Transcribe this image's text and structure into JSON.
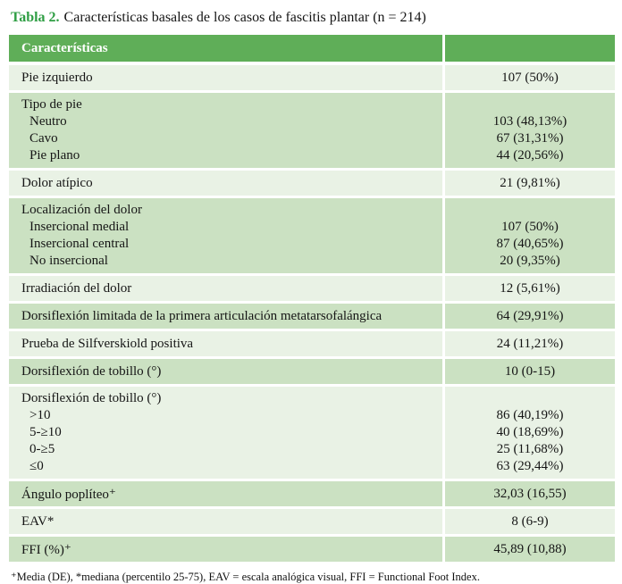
{
  "caption": {
    "label": "Tabla 2.",
    "text": "Características basales de los casos de fascitis plantar (n = 214)"
  },
  "table": {
    "header": {
      "col1": "Características",
      "col2": ""
    },
    "rows": [
      {
        "type": "simple",
        "shade": "light",
        "label": "Pie izquierdo",
        "value": "107 (50%)"
      },
      {
        "type": "group",
        "shade": "dark",
        "label": "Tipo de pie",
        "items": [
          {
            "label": "Neutro",
            "value": "103 (48,13%)"
          },
          {
            "label": "Cavo",
            "value": "67 (31,31%)"
          },
          {
            "label": "Pie plano",
            "value": "44 (20,56%)"
          }
        ]
      },
      {
        "type": "simple",
        "shade": "light",
        "label": "Dolor atípico",
        "value": "21 (9,81%)"
      },
      {
        "type": "group",
        "shade": "dark",
        "label": "Localización del dolor",
        "items": [
          {
            "label": "Insercional medial",
            "value": "107 (50%)"
          },
          {
            "label": "Insercional central",
            "value": "87 (40,65%)"
          },
          {
            "label": "No insercional",
            "value": "20 (9,35%)"
          }
        ]
      },
      {
        "type": "simple",
        "shade": "light",
        "label": "Irradiación del dolor",
        "value": "12 (5,61%)"
      },
      {
        "type": "simple",
        "shade": "dark",
        "label": "Dorsiflexión limitada de la primera articulación metatarsofalángica",
        "value": "64 (29,91%)"
      },
      {
        "type": "simple",
        "shade": "light",
        "label": "Prueba de Silfverskiold positiva",
        "value": "24 (11,21%)"
      },
      {
        "type": "simple",
        "shade": "dark",
        "label": "Dorsiflexión de tobillo (°)",
        "value": "10 (0-15)"
      },
      {
        "type": "group",
        "shade": "light",
        "label": "Dorsiflexión de tobillo (°)",
        "items": [
          {
            "label": ">10",
            "value": "86 (40,19%)"
          },
          {
            "label": "5-≥10",
            "value": "40 (18,69%)"
          },
          {
            "label": "0-≥5",
            "value": "25 (11,68%)"
          },
          {
            "label": "≤0",
            "value": "63 (29,44%)"
          }
        ]
      },
      {
        "type": "simple",
        "shade": "dark",
        "label": "Ángulo poplíteo⁺",
        "value": "32,03 (16,55)"
      },
      {
        "type": "simple",
        "shade": "light",
        "label": "EAV*",
        "value": "8 (6-9)"
      },
      {
        "type": "simple",
        "shade": "dark",
        "label": "FFI (%)⁺",
        "value": "45,89 (10,88)"
      }
    ]
  },
  "footnote": "⁺Media (DE), *mediana (percentilo 25-75), EAV = escala analógica visual, FFI = Functional Foot Index.",
  "colors": {
    "header_bg": "#5fae58",
    "row_light": "#e9f2e5",
    "row_dark": "#cbe1c2",
    "caption_green": "#2f9e44",
    "header_text": "#ffffff"
  }
}
